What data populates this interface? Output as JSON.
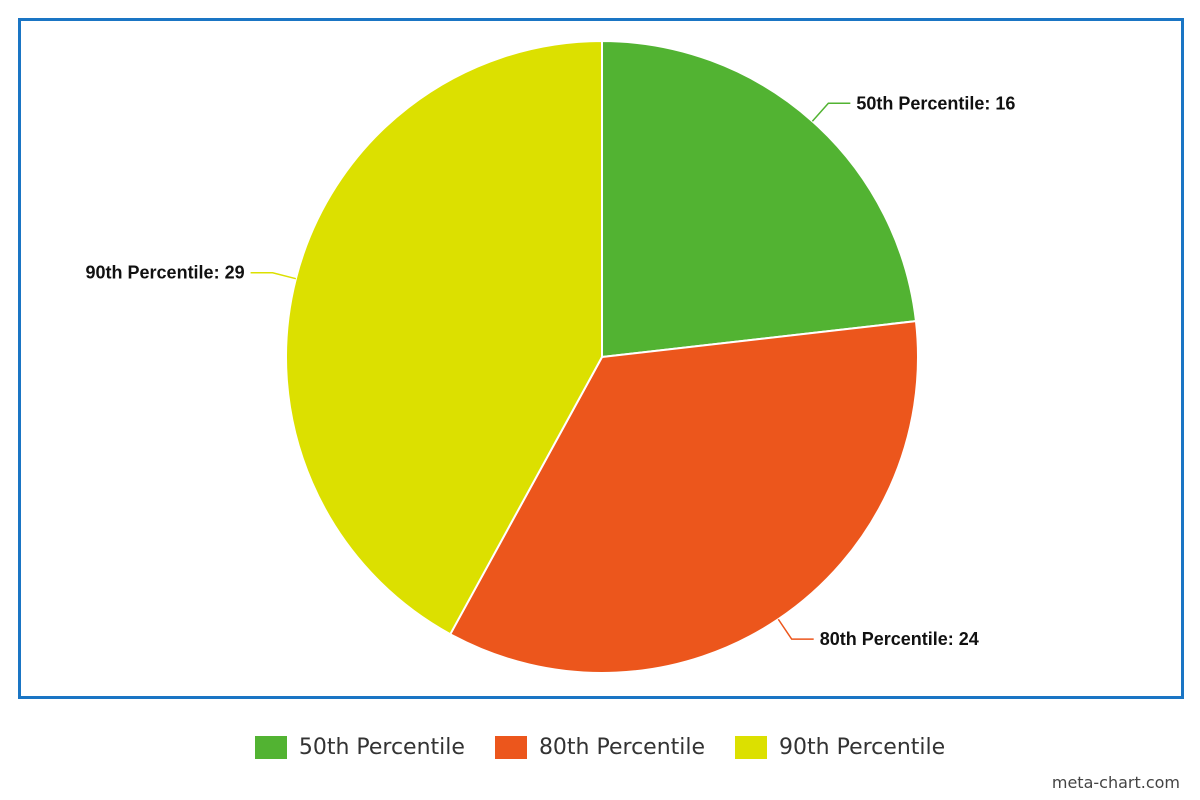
{
  "chart_data": {
    "type": "pie",
    "categories": [
      "50th Percentile",
      "80th Percentile",
      "90th Percentile"
    ],
    "values": [
      16,
      24,
      29
    ],
    "colors": [
      "#52b332",
      "#ec561c",
      "#dce000"
    ],
    "data_labels": [
      "50th Percentile: 16",
      "80th Percentile: 24",
      "90th Percentile: 29"
    ],
    "legend_position": "bottom",
    "start_angle": "12 o'clock",
    "direction": "clockwise"
  },
  "legend": {
    "items": [
      {
        "label": "50th Percentile",
        "color": "#52b332"
      },
      {
        "label": "80th Percentile",
        "color": "#ec561c"
      },
      {
        "label": "90th Percentile",
        "color": "#dce000"
      }
    ]
  },
  "frame": {
    "border_color": "#1a75c4"
  },
  "watermark": "meta-chart.com"
}
